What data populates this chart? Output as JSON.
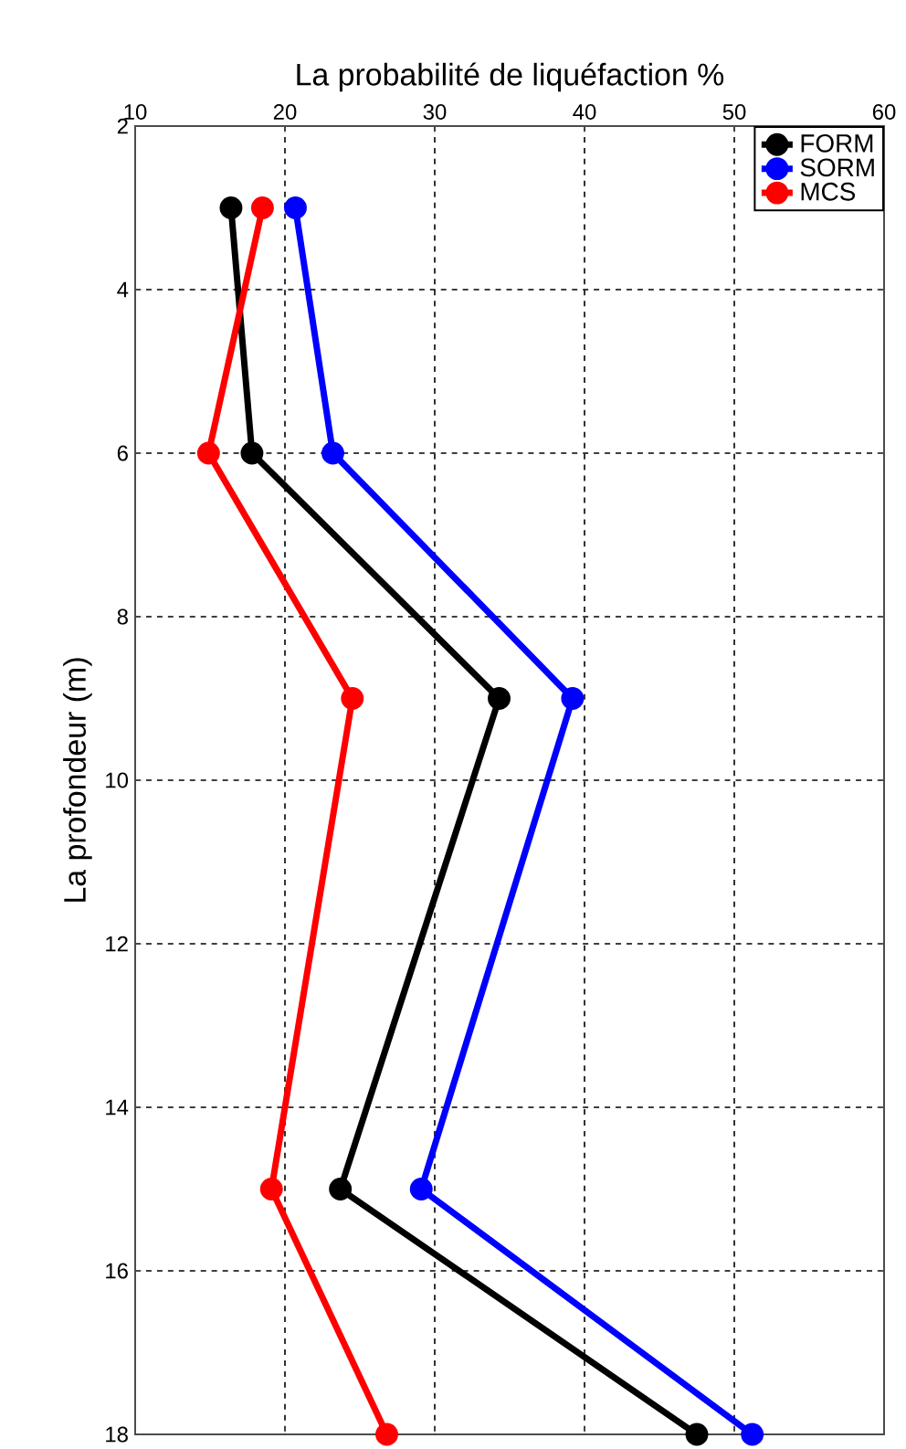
{
  "chart_data": {
    "type": "line",
    "xlabel": "La probabilité de liquéfaction %",
    "ylabel": "La profondeur (m)",
    "xlim": [
      10,
      60
    ],
    "xticks": [
      10,
      20,
      30,
      40,
      50,
      60
    ],
    "ylim": [
      18,
      2
    ],
    "yticks": [
      2,
      4,
      6,
      8,
      10,
      12,
      14,
      16,
      18
    ],
    "grid": true,
    "legend": "top right",
    "marker": "circle",
    "line_style": "solid",
    "series": [
      {
        "name": "FORM",
        "color": "#000000",
        "x": [
          16.4,
          17.8,
          34.3,
          23.7,
          47.5
        ],
        "values": [
          3,
          6,
          9,
          15,
          18
        ]
      },
      {
        "name": "SORM",
        "color": "#0000ff",
        "x": [
          20.7,
          23.2,
          39.2,
          29.1,
          51.2
        ],
        "values": [
          3,
          6,
          9,
          15,
          18
        ]
      },
      {
        "name": "MCS",
        "color": "#ff0000",
        "x": [
          18.5,
          14.9,
          24.5,
          19.1,
          26.8
        ],
        "values": [
          3,
          6,
          9,
          15,
          18
        ]
      }
    ]
  }
}
